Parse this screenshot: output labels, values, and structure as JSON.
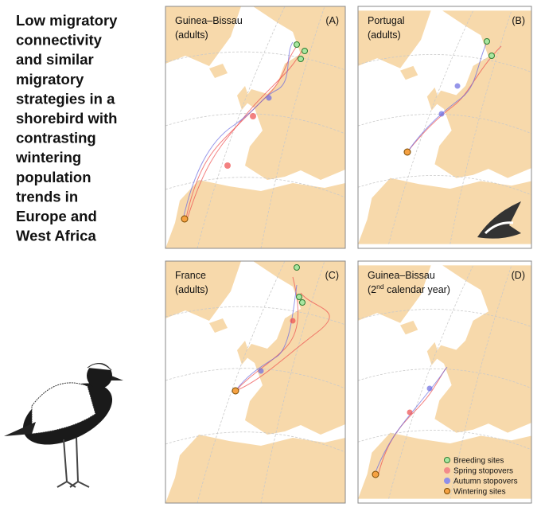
{
  "title_lines": [
    "Low migratory",
    "connectivity",
    "and similar",
    "migratory",
    "strategies in a",
    "shorebird with",
    "contrasting",
    "wintering",
    "population",
    "trends in",
    "Europe and",
    "West Africa"
  ],
  "panels": [
    {
      "region": "Guinea–Bissau",
      "group": "(adults)",
      "label": "(A)"
    },
    {
      "region": "Portugal",
      "group": "(adults)",
      "label": "(B)"
    },
    {
      "region": "France",
      "group": "(adults)",
      "label": "(C)"
    },
    {
      "region": "Guinea–Bissau",
      "group_parts": [
        "(2",
        "nd",
        " calendar year)"
      ],
      "label": "(D)"
    }
  ],
  "legend": [
    {
      "label": "Breeding sites",
      "color": "#a8e6a0",
      "stroke": "#2e7d32"
    },
    {
      "label": "Spring stopovers",
      "color": "#f28b8b",
      "stroke": "#f28b8b"
    },
    {
      "label": "Autumn stopovers",
      "color": "#8f8fe8",
      "stroke": "#8f8fe8"
    },
    {
      "label": "Wintering sites",
      "color": "#f5a142",
      "stroke": "#7a4a00"
    }
  ]
}
